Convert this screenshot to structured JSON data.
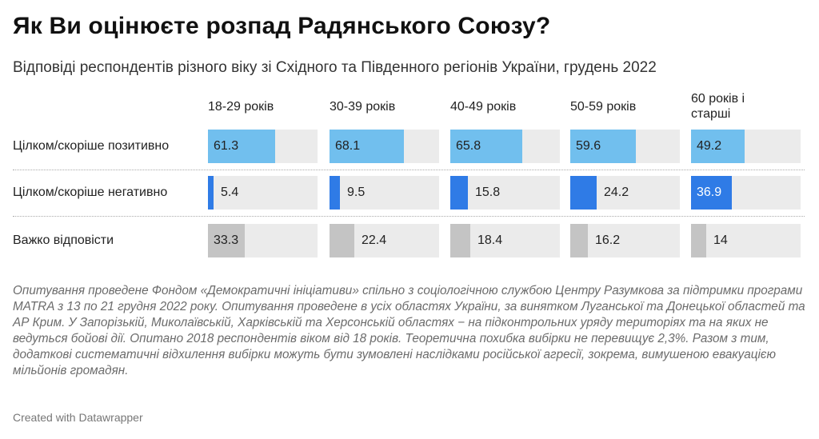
{
  "title": "Як Ви оцінюєте розпад Радянського Союзу?",
  "subtitle": "Відповіді респондентів різного віку зі Східного та Південного регіонів України, грудень 2022",
  "notes": "Опитування проведене Фондом «Демократичні ініціативи» спільно з соціологічною службою Центру Разумкова за підтримки програми MATRA з 13 по 21 грудня 2022 року. Опитування проведене в усіх областях України, за винятком Луганської та Донецької областей та АР Крим. У Запорізькій, Миколаївській, Харківській та Херсонській областях − на підконтрольних уряду територіях та на яких не ведуться бойові дії. Опитано 2018 респондентів віком від 18 років. Теоретична похибка вибірки не перевищує 2,3%. Разом з тим, додаткові систематичні відхилення вибірки можуть бути зумовлені наслідками російської агресії, зокрема, вимушеною евакуацією мільйонів громадян.",
  "credit": "Created with Datawrapper",
  "colors": {
    "positive": "#71bfee",
    "negative": "#2f7be6",
    "neutral": "#c4c4c4",
    "track": "#ebebeb"
  },
  "chart_data": {
    "type": "bar",
    "categories": [
      "18-29 років",
      "30-39 років",
      "40-49 років",
      "50-59 років",
      "60 років і старші"
    ],
    "ylim": [
      0,
      100
    ],
    "series": [
      {
        "name": "Цілком/скоріше позитивно",
        "values": [
          61.3,
          68.1,
          65.8,
          59.6,
          49.2
        ],
        "color": "#71bfee"
      },
      {
        "name": "Цілком/скоріше негативно",
        "values": [
          5.4,
          9.5,
          15.8,
          24.2,
          36.9
        ],
        "color": "#2f7be6"
      },
      {
        "name": "Важко відповісти",
        "values": [
          33.3,
          22.4,
          18.4,
          16.2,
          14
        ],
        "color": "#c4c4c4"
      }
    ]
  }
}
